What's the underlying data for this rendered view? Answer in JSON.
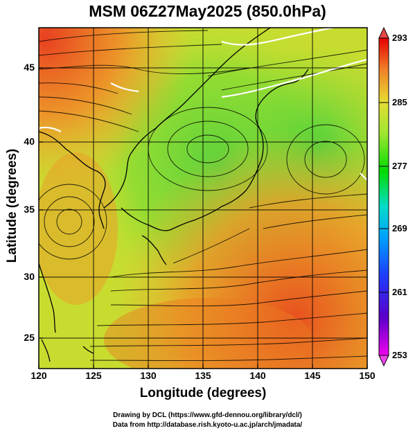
{
  "title": "MSM 06Z27May2025 (850.0hPa)",
  "axes": {
    "xlabel": "Longitude (degrees)",
    "ylabel": "Latitude  (degrees)",
    "xticks": [
      "120",
      "125",
      "130",
      "135",
      "140",
      "145",
      "150"
    ],
    "yticks": [
      "45",
      "40",
      "35",
      "30",
      "25"
    ],
    "xlim": [
      120,
      150
    ],
    "ylim": [
      22.4,
      47.6
    ]
  },
  "colorbar": {
    "ticks": [
      "293",
      "285",
      "277",
      "269",
      "261",
      "253"
    ],
    "range": [
      253,
      293
    ],
    "colors": [
      "#ee00ee",
      "#5a00c8",
      "#1e3cff",
      "#00a0ff",
      "#00dcc8",
      "#00dc00",
      "#a0e632",
      "#e6dc32",
      "#f08228",
      "#e60000"
    ]
  },
  "footer": {
    "line1": "Drawing by DCL (https://www.gfd-dennou.org/library/dcl/)",
    "line2": "Data from http://database.rish.kyoto-u.ac.jp/arch/jmadata/"
  },
  "chart_data": {
    "type": "heatmap",
    "variable": "temperature with streamlines",
    "level": "850.0hPa",
    "regions": [
      {
        "area": "northwest corner",
        "value": 290
      },
      {
        "area": "northeast Japan / Sea of Japan",
        "value": 280
      },
      {
        "area": "eastern Pacific north",
        "value": 278
      },
      {
        "area": "East China Sea",
        "value": 283
      },
      {
        "area": "southeast Pacific",
        "value": 289
      }
    ],
    "grid": true
  }
}
